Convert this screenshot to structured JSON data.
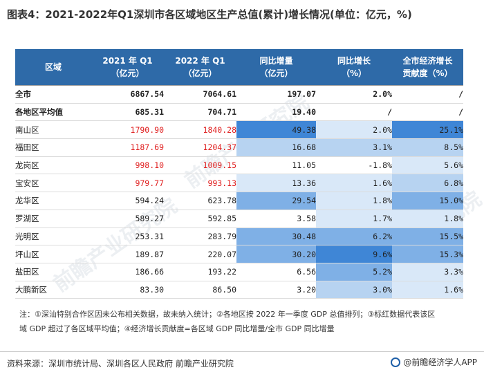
{
  "title": "图表4：2021-2022年Q1深圳市各区域地区生产总值(累计)增长情况(单位：亿元，%)",
  "table": {
    "headers": [
      {
        "line1": "区域",
        "line2": ""
      },
      {
        "line1": "2021 年 Q1",
        "line2": "（亿元）"
      },
      {
        "line1": "2022 年 Q1",
        "line2": "（亿元）"
      },
      {
        "line1": "同比增量",
        "line2": "（亿元）"
      },
      {
        "line1": "同比增长",
        "line2": "（%）"
      },
      {
        "line1": "全市经济增长",
        "line2": "贡献度（%）"
      }
    ],
    "rows": [
      {
        "region": "全市",
        "q1_2021": "6867.54",
        "q1_2022": "7064.61",
        "increase": "197.07",
        "growth": "2.0%",
        "contribution": "/"
      },
      {
        "region": "各地区平均值",
        "q1_2021": "685.31",
        "q1_2022": "704.71",
        "increase": "19.40",
        "growth": "/",
        "contribution": "/"
      },
      {
        "region": "南山区",
        "q1_2021": "1790.90",
        "q1_2022": "1840.28",
        "increase": "49.38",
        "growth": "2.0%",
        "contribution": "25.1%"
      },
      {
        "region": "福田区",
        "q1_2021": "1187.69",
        "q1_2022": "1204.37",
        "increase": "16.68",
        "growth": "3.1%",
        "contribution": "8.5%"
      },
      {
        "region": "龙岗区",
        "q1_2021": "998.10",
        "q1_2022": "1009.15",
        "increase": "11.05",
        "growth": "-1.8%",
        "contribution": "5.6%"
      },
      {
        "region": "宝安区",
        "q1_2021": "979.77",
        "q1_2022": "993.13",
        "increase": "13.36",
        "growth": "1.6%",
        "contribution": "6.8%"
      },
      {
        "region": "龙华区",
        "q1_2021": "594.24",
        "q1_2022": "623.78",
        "increase": "29.54",
        "growth": "1.8%",
        "contribution": "15.0%"
      },
      {
        "region": "罗湖区",
        "q1_2021": "589.27",
        "q1_2022": "592.85",
        "increase": "3.58",
        "growth": "1.7%",
        "contribution": "1.8%"
      },
      {
        "region": "光明区",
        "q1_2021": "253.31",
        "q1_2022": "283.79",
        "increase": "30.48",
        "growth": "6.2%",
        "contribution": "15.5%"
      },
      {
        "region": "坪山区",
        "q1_2021": "189.87",
        "q1_2022": "220.07",
        "increase": "30.20",
        "growth": "9.6%",
        "contribution": "15.3%"
      },
      {
        "region": "盐田区",
        "q1_2021": "186.66",
        "q1_2022": "193.22",
        "increase": "6.56",
        "growth": "5.2%",
        "contribution": "3.3%"
      },
      {
        "region": "大鹏新区",
        "q1_2021": "83.30",
        "q1_2022": "86.50",
        "increase": "3.20",
        "growth": "3.0%",
        "contribution": "1.6%"
      }
    ]
  },
  "colors": {
    "header_bg": "#2e6aa8",
    "highlight_red": "#e02020",
    "heat_strong": "#3f86d6",
    "heat_medium": "#7fb0e6",
    "heat_light": "#b7d3f1",
    "heat_faint": "#d9e8f8"
  },
  "note": {
    "line1": "注：①深汕特别合作区因未公布相关数据，故未纳入统计；②各地区按 2022 年一季度 GDP 总值排列；③标红数据代表该区",
    "line2": "域 GDP 超过了各区域平均值；④经济增长贡献度=各区域 GDP 同比增量/全市 GDP 同比增量"
  },
  "source": "资料来源：深圳市统计局、深圳各区人民政府 前瞻产业研究院",
  "brand": "@前瞻经济学人APP",
  "watermark": "前瞻产业研究院"
}
